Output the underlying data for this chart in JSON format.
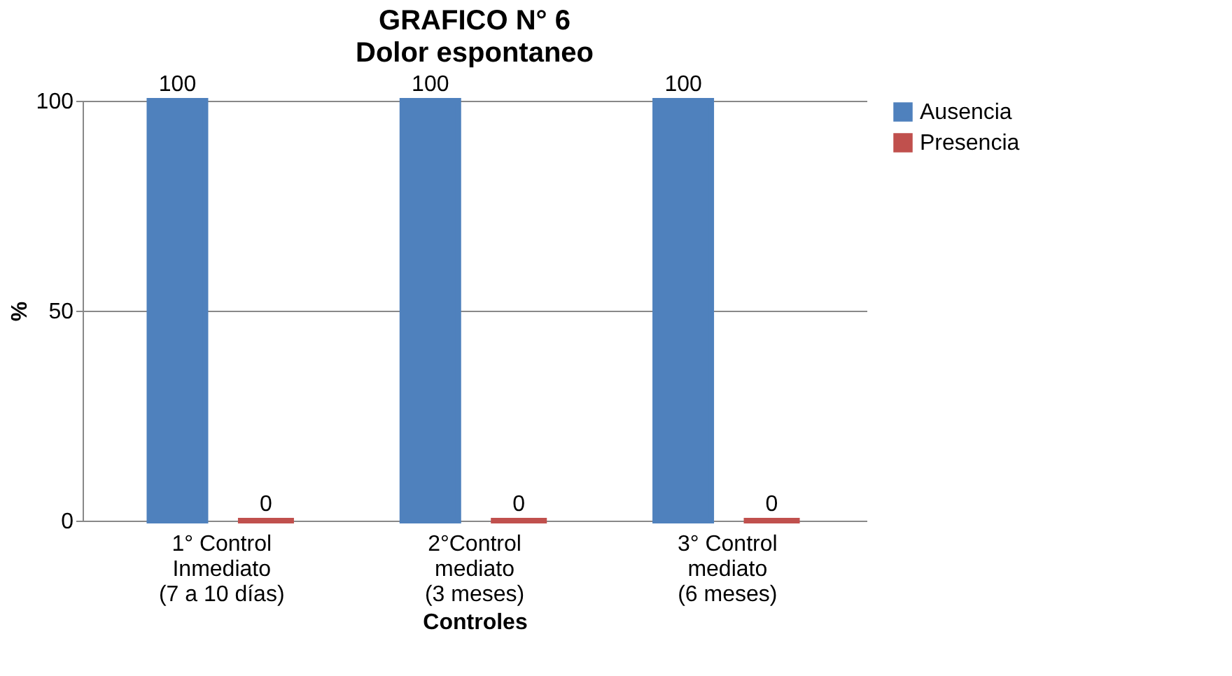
{
  "chart_data": {
    "type": "bar",
    "title": "GRAFICO N° 6",
    "subtitle": "Dolor espontaneo",
    "xlabel": "Controles",
    "ylabel": "%",
    "categories": [
      "1° Control\nInmediato\n(7 a 10 días)",
      "2°Control\nmediato\n(3 meses)",
      "3° Control\nmediato\n(6 meses)"
    ],
    "series": [
      {
        "name": "Ausencia",
        "color": "#4f81bd",
        "values": [
          100,
          100,
          100
        ]
      },
      {
        "name": "Presencia",
        "color": "#c0504d",
        "values": [
          0,
          0,
          0
        ]
      }
    ],
    "ylim": [
      0,
      100
    ],
    "yticks": [
      0,
      50,
      100
    ],
    "grid": "y",
    "legend": "right",
    "data_labels": true
  }
}
